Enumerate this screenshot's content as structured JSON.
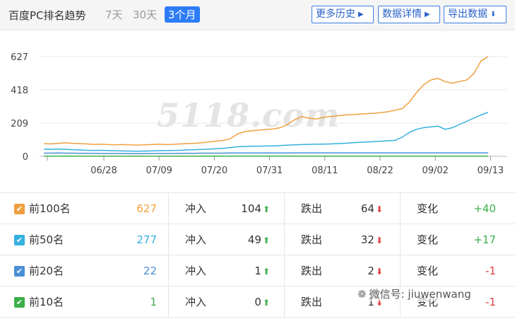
{
  "header": {
    "title": "百度PC排名趋势",
    "ranges": [
      "7天",
      "30天",
      "3个月"
    ],
    "active_range": "3个月",
    "buttons": [
      "更多历史",
      "数据详情",
      "导出数据"
    ]
  },
  "chart_data": {
    "type": "line",
    "y_ticks": [
      "627",
      "418",
      "209",
      "0"
    ],
    "ylim": [
      0,
      627
    ],
    "x_ticks": [
      "06/28",
      "07/09",
      "07/20",
      "07/31",
      "08/11",
      "08/22",
      "09/02",
      "09/13"
    ],
    "grid": "horizontal",
    "series": [
      {
        "color": "#f0a040",
        "values": [
          80,
          78,
          82,
          85,
          82,
          80,
          78,
          75,
          76,
          74,
          72,
          74,
          72,
          70,
          72,
          74,
          76,
          74,
          75,
          78,
          80,
          82,
          85,
          90,
          95,
          100,
          110,
          140,
          155,
          160,
          165,
          168,
          172,
          180,
          200,
          230,
          250,
          240,
          235,
          245,
          250,
          255,
          260,
          262,
          265,
          268,
          270,
          275,
          280,
          290,
          300,
          340,
          400,
          450,
          480,
          490,
          470,
          460,
          470,
          480,
          520,
          600,
          627
        ]
      },
      {
        "color": "#35b0e0",
        "values": [
          45,
          44,
          46,
          44,
          42,
          40,
          38,
          37,
          38,
          36,
          35,
          34,
          33,
          32,
          33,
          34,
          35,
          36,
          37,
          38,
          40,
          42,
          43,
          45,
          48,
          50,
          55,
          60,
          62,
          63,
          64,
          65,
          66,
          68,
          70,
          72,
          74,
          75,
          76,
          77,
          78,
          80,
          82,
          85,
          88,
          90,
          92,
          95,
          98,
          100,
          120,
          150,
          170,
          180,
          185,
          190,
          170,
          180,
          200,
          220,
          240,
          260,
          277
        ]
      },
      {
        "color": "#4a8fd6",
        "values": [
          20,
          20,
          21,
          20,
          20,
          19,
          19,
          19,
          18,
          18,
          18,
          18,
          17,
          17,
          17,
          18,
          18,
          18,
          18,
          19,
          19,
          19,
          20,
          20,
          20,
          20,
          21,
          21,
          21,
          21,
          21,
          21,
          21,
          21,
          21,
          22,
          22,
          22,
          22,
          22,
          22,
          22,
          22,
          22,
          22,
          22,
          22,
          22,
          22,
          22,
          22,
          22,
          22,
          22,
          22,
          22,
          22,
          22,
          22,
          22,
          22,
          22,
          22
        ]
      },
      {
        "color": "#3cb04a",
        "values": [
          1,
          1,
          1,
          1,
          1,
          1,
          1,
          1,
          1,
          1,
          1,
          1,
          1,
          1,
          1,
          1,
          1,
          1,
          1,
          1,
          1,
          1,
          1,
          1,
          1,
          1,
          1,
          1,
          1,
          1,
          1,
          1,
          1,
          1,
          1,
          1,
          1,
          1,
          1,
          1,
          1,
          1,
          1,
          1,
          1,
          1,
          1,
          1,
          1,
          1,
          1,
          1,
          1,
          1,
          1,
          1,
          1,
          1,
          1,
          1,
          1,
          1,
          1
        ]
      }
    ]
  },
  "watermark": "5118.com",
  "table": {
    "rows": [
      {
        "label": "前100名",
        "color": "#f0a040",
        "value": "627",
        "in_label": "冲入",
        "in": "104",
        "out_label": "跌出",
        "out": "64",
        "change_label": "变化",
        "change": "+40",
        "change_sign": "pos"
      },
      {
        "label": "前50名",
        "color": "#35b0e0",
        "value": "277",
        "in_label": "冲入",
        "in": "49",
        "out_label": "跌出",
        "out": "32",
        "change_label": "变化",
        "change": "+17",
        "change_sign": "pos"
      },
      {
        "label": "前20名",
        "color": "#4a8fd6",
        "value": "22",
        "in_label": "冲入",
        "in": "1",
        "out_label": "跌出",
        "out": "2",
        "change_label": "变化",
        "change": "-1",
        "change_sign": "neg"
      },
      {
        "label": "前10名",
        "color": "#3cb04a",
        "value": "1",
        "in_label": "冲入",
        "in": "0",
        "out_label": "跌出",
        "out": "1",
        "change_label": "变化",
        "change": "-1",
        "change_sign": "neg"
      }
    ]
  },
  "overlay": {
    "wechat": "微信号: jiuwenwang"
  }
}
